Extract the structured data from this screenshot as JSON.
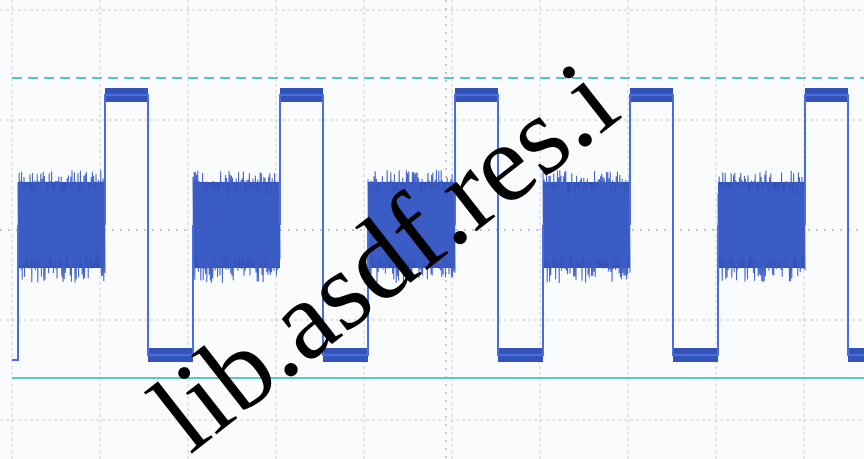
{
  "watermark": "lib.asdf.res.i"
}
